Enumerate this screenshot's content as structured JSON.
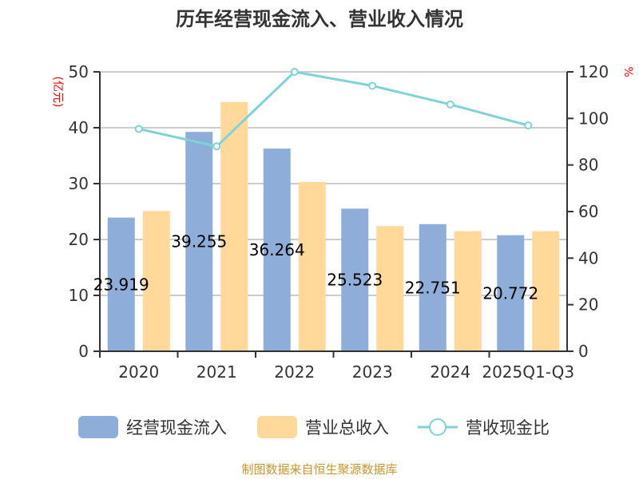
{
  "chart_data": {
    "type": "bar",
    "title": "历年经营现金流入、营业收入情况",
    "categories": [
      "2020",
      "2021",
      "2022",
      "2023",
      "2024",
      "2025Q1-Q3"
    ],
    "ylabel_left": "(亿元)",
    "ylabel_right": "%",
    "ylim_left": [
      0,
      50
    ],
    "yticks_left": [
      0,
      10,
      20,
      30,
      40,
      50
    ],
    "ylim_right": [
      0,
      120
    ],
    "yticks_right": [
      0,
      20,
      40,
      60,
      80,
      100,
      120
    ],
    "grid": true,
    "legend_position": "bottom",
    "series": [
      {
        "name": "经营现金流入",
        "type": "bar",
        "color": "#8eadd9",
        "values": [
          23.919,
          39.255,
          36.264,
          25.523,
          22.751,
          20.772
        ],
        "labels": [
          "23.919",
          "39.255",
          "36.264",
          "25.523",
          "22.751",
          "20.772"
        ]
      },
      {
        "name": "营业总收入",
        "type": "bar",
        "color": "#ffd99a",
        "values": [
          25.1,
          44.6,
          30.3,
          22.4,
          21.5,
          21.5
        ]
      },
      {
        "name": "营收现金比",
        "type": "line",
        "axis": "right",
        "color": "#7fd3d6",
        "values": [
          95.5,
          88,
          120,
          114,
          106,
          97
        ]
      }
    ],
    "source": "制图数据来自恒生聚源数据库"
  }
}
